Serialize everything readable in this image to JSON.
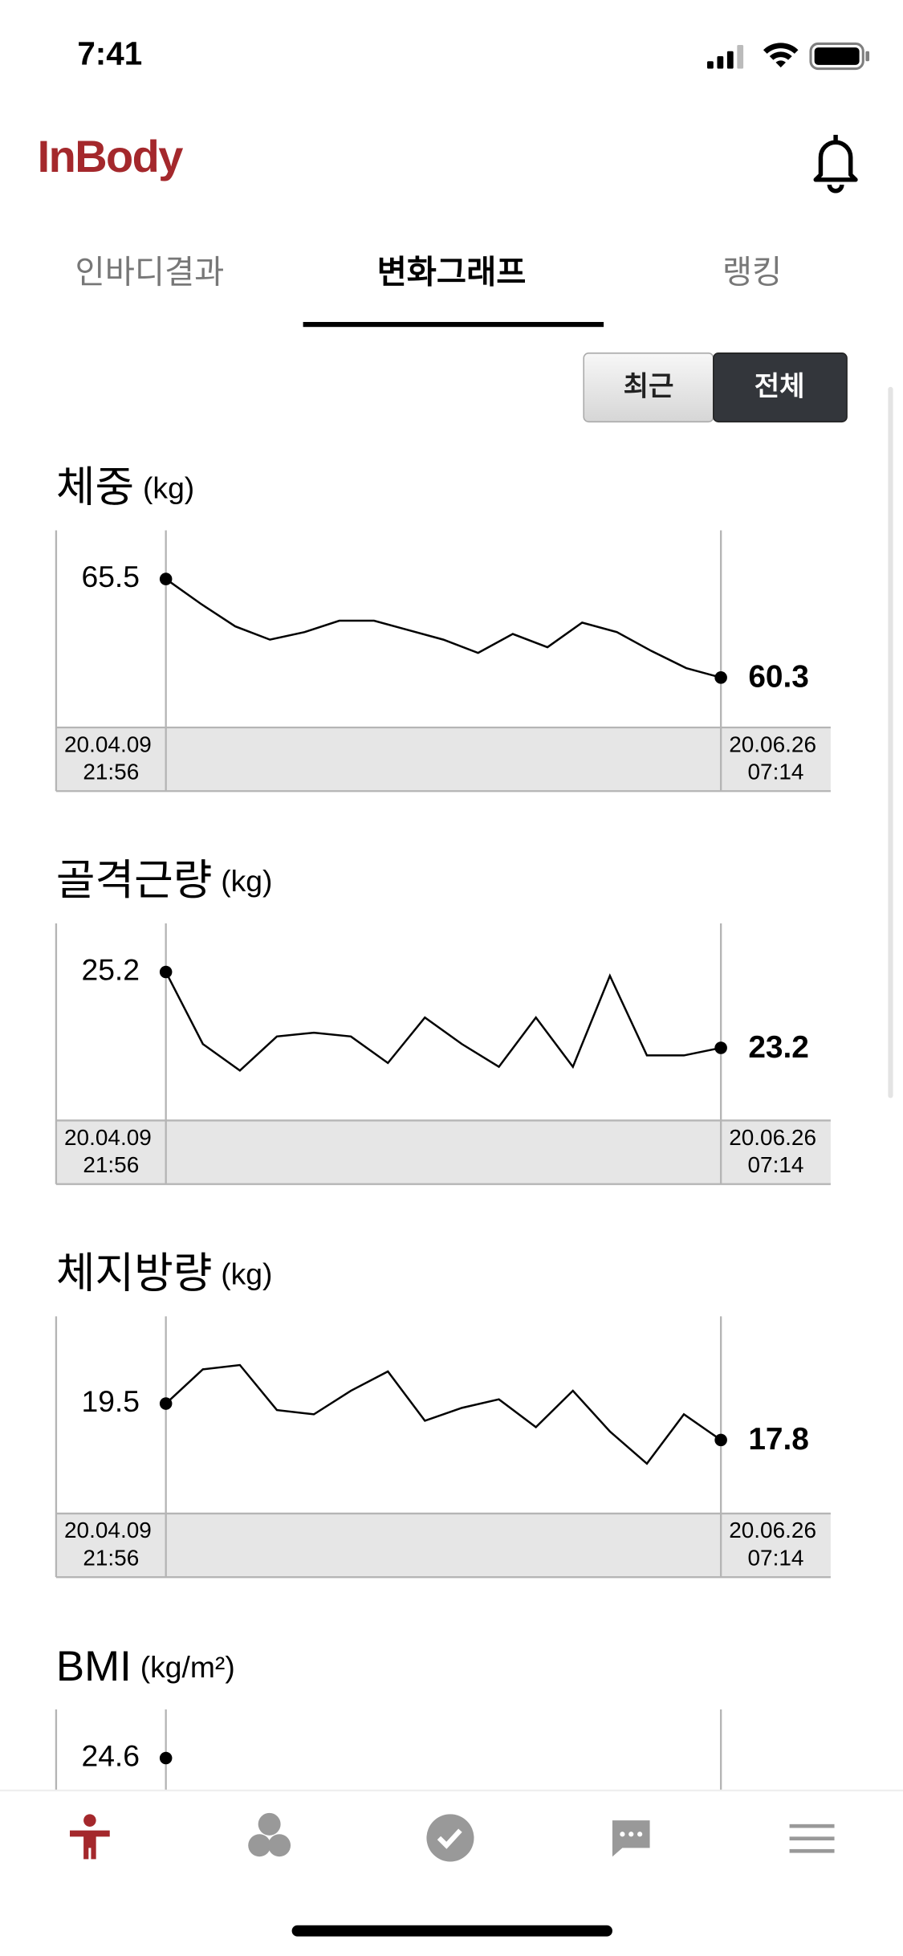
{
  "status_bar": {
    "time": "7:41"
  },
  "header": {
    "logo": "InBody"
  },
  "tabs": [
    "인바디결과",
    "변화그래프",
    "랭킹"
  ],
  "period_toggle": [
    "최근",
    "전체"
  ],
  "chart_data": [
    {
      "type": "line",
      "title": "체중",
      "unit": "(kg)",
      "color": "#000000",
      "categories": [
        "20.04.09 21:56",
        null,
        null,
        null,
        null,
        null,
        null,
        null,
        null,
        null,
        null,
        null,
        null,
        null,
        null,
        null,
        "20.06.26 07:14"
      ],
      "values": [
        65.5,
        64.2,
        63.0,
        62.3,
        62.7,
        63.3,
        63.3,
        62.8,
        62.3,
        61.6,
        62.6,
        61.9,
        63.2,
        62.7,
        61.7,
        60.8,
        60.3
      ]
    },
    {
      "type": "line",
      "title": "골격근량",
      "unit": "(kg)",
      "color": "#000000",
      "categories": [
        "20.04.09 21:56",
        null,
        null,
        null,
        null,
        null,
        null,
        null,
        null,
        null,
        null,
        null,
        null,
        null,
        null,
        "20.06.26 07:14"
      ],
      "values": [
        25.2,
        23.3,
        22.6,
        23.5,
        23.6,
        23.5,
        22.8,
        24.0,
        23.3,
        22.7,
        24.0,
        22.7,
        25.1,
        23.0,
        23.0,
        23.2
      ]
    },
    {
      "type": "line",
      "title": "체지방량",
      "unit": "(kg)",
      "color": "#000000",
      "categories": [
        "20.04.09 21:56",
        null,
        null,
        null,
        null,
        null,
        null,
        null,
        null,
        null,
        null,
        null,
        null,
        null,
        null,
        "20.06.26 07:14"
      ],
      "values": [
        19.5,
        21.1,
        21.3,
        19.2,
        19.0,
        20.1,
        21.0,
        18.7,
        19.3,
        19.7,
        18.4,
        20.1,
        18.2,
        16.7,
        19.0,
        17.8
      ]
    },
    {
      "type": "line",
      "title": "BMI",
      "unit": "(kg/m²)",
      "color": "#000000",
      "categories": [
        null
      ],
      "values": [
        24.6
      ]
    }
  ]
}
